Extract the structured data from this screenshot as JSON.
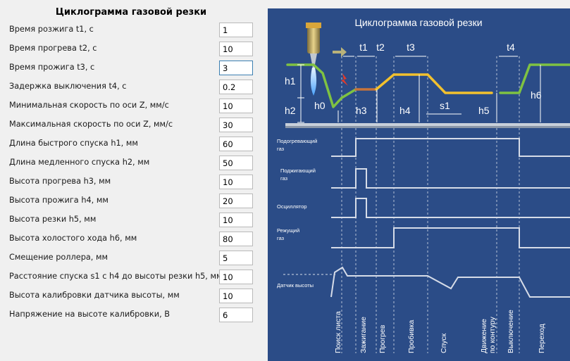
{
  "form": {
    "title": "Циклограмма газовой резки",
    "params": [
      {
        "label": "Время розжига t1, с",
        "value": "1"
      },
      {
        "label": "Время прогрева t2, с",
        "value": "10"
      },
      {
        "label": "Время прожига t3, с",
        "value": "3"
      },
      {
        "label": "Задержка выключения t4, с",
        "value": "0.2"
      },
      {
        "label": "Минимальная скорость по оси Z, мм/с",
        "value": "10"
      },
      {
        "label": "Максимальная скорость по оси Z, мм/с",
        "value": "30"
      },
      {
        "label": "Длина быстрого спуска h1, мм",
        "value": "60"
      },
      {
        "label": "Длина медленного спуска h2, мм",
        "value": "50"
      },
      {
        "label": "Высота прогрева h3, мм",
        "value": "10"
      },
      {
        "label": "Высота прожига h4, мм",
        "value": "20"
      },
      {
        "label": "Высота резки h5, мм",
        "value": "10"
      },
      {
        "label": "Высота холостого хода h6, мм",
        "value": "80"
      },
      {
        "label": "Смещение роллера, мм",
        "value": "5"
      },
      {
        "label": "Расстояние спуска s1 с h4 до высоты резки h5, мм",
        "value": "10"
      },
      {
        "label": "Высота калибровки датчика высоты, мм",
        "value": "10"
      },
      {
        "label": "Напряжение на высоте калибровки, В",
        "value": "6"
      }
    ]
  },
  "diagram": {
    "title": "Циклограмма газовой резки",
    "time_labels": {
      "t1": "t1",
      "t2": "t2",
      "t3": "t3",
      "t4": "t4"
    },
    "height_labels": {
      "h0": "h0",
      "h1": "h1",
      "h2": "h2",
      "h3": "h3",
      "h4": "h4",
      "h5": "h5",
      "h6": "h6",
      "s1": "s1"
    },
    "signals": {
      "heating_gas_1": "Подогревающий",
      "heating_gas_2": "газ",
      "ignition_gas_1": "Поджигающий",
      "ignition_gas_2": "газ",
      "oscillator": "Осциллятор",
      "cutting_gas_1": "Режущий",
      "cutting_gas_2": "газ",
      "height_sensor": "Датчик высоты"
    },
    "phases": {
      "sheet_search": "Поиск листа",
      "ignition": "Зажигание",
      "preheat": "Прогрев",
      "pierce": "Пробивка",
      "descent": "Спуск",
      "contour_1": "Движение",
      "contour_2": "по контуру",
      "shutdown": "Выключение",
      "transition": "Переход"
    },
    "colors": {
      "background": "#2b4c87",
      "torch_path_green": "#7fc242",
      "torch_path_yellow": "#f2c12e",
      "torch_path_orange": "#c8743a",
      "signal_line": "#d6dce8"
    }
  }
}
